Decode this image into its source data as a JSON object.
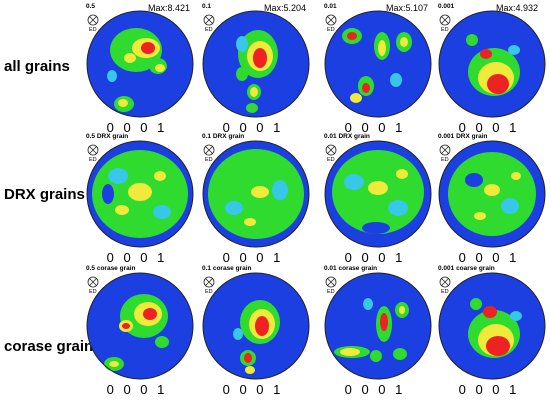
{
  "colors": {
    "low": "#1b3fe0",
    "mid_low": "#38c7e8",
    "mid": "#2edb2e",
    "high": "#f0ea3a",
    "very_high": "#ee2222",
    "outline": "#222222"
  },
  "rows": [
    {
      "label": "all grains",
      "panels": [
        {
          "caption": "0.5",
          "max": "Max:8.421",
          "miller": "0 0 0 1",
          "ed": "ED"
        },
        {
          "caption": "0.1",
          "max": "Max:5.204",
          "miller": "0 0 0 1",
          "ed": "ED"
        },
        {
          "caption": "0.01",
          "max": "Max:5.107",
          "miller": "0 0 0 1",
          "ed": "ED"
        },
        {
          "caption": "0.001",
          "max": "Max:4.932",
          "miller": "0 0 0 1",
          "ed": "ED"
        }
      ]
    },
    {
      "label": "DRX grains",
      "panels": [
        {
          "caption": "0.5 DRX grain",
          "max": "",
          "miller": "0 0 0 1",
          "ed": "ED"
        },
        {
          "caption": "0.1 DRX grain",
          "max": "",
          "miller": "0 0 0 1",
          "ed": "ED"
        },
        {
          "caption": "0.01 DRX grain",
          "max": "",
          "miller": "0 0 0 1",
          "ed": "ED"
        },
        {
          "caption": "0.001 DRX grain",
          "max": "",
          "miller": "0 0 0 1",
          "ed": "ED"
        }
      ]
    },
    {
      "label": "corase grains",
      "panels": [
        {
          "caption": "0.5 corase grain",
          "max": "",
          "miller": "0 0 0 1",
          "ed": "ED"
        },
        {
          "caption": "0.1 corase grain",
          "max": "",
          "miller": "0 0 0 1",
          "ed": "ED"
        },
        {
          "caption": "0.01 corase grain",
          "max": "",
          "miller": "0 0 0 1",
          "ed": "ED"
        },
        {
          "caption": "0.001 coarse grain",
          "max": "",
          "miller": "0 0 0 1",
          "ed": "ED"
        }
      ]
    }
  ]
}
